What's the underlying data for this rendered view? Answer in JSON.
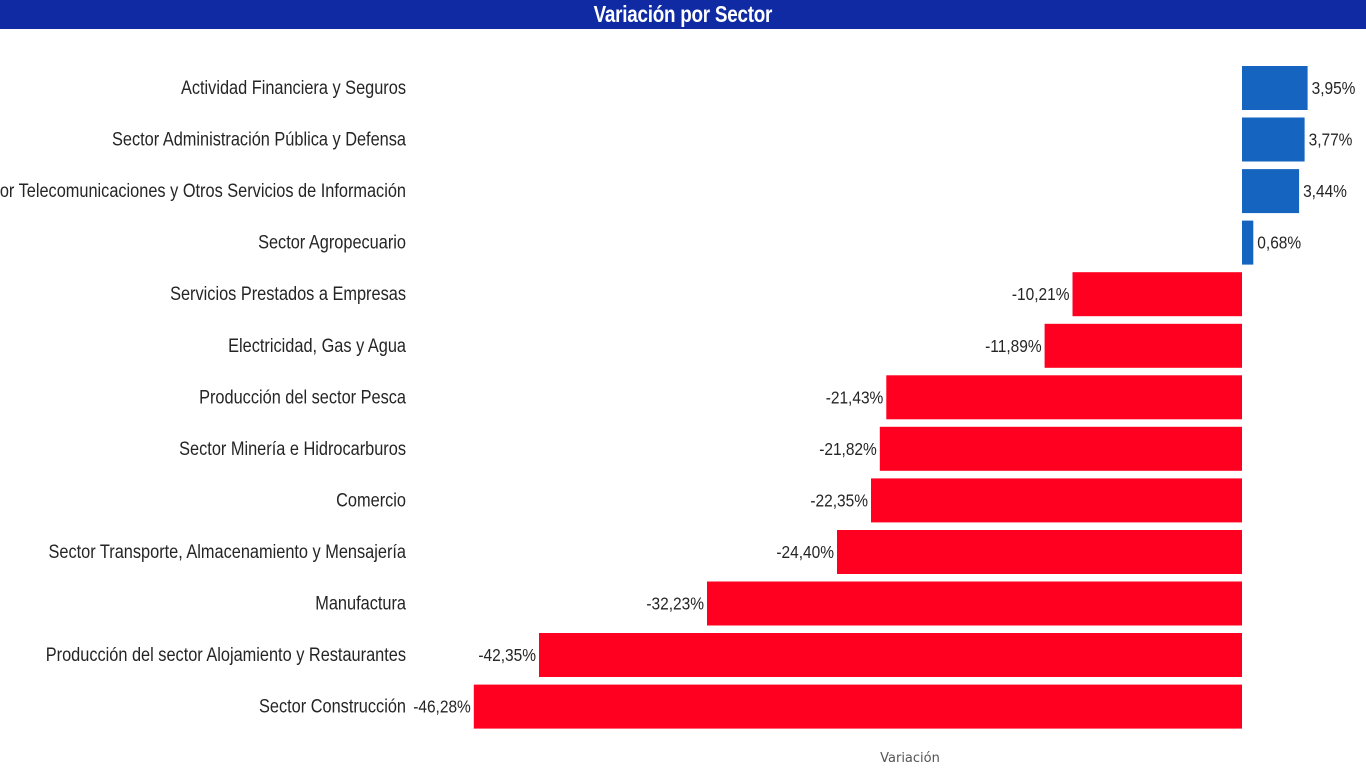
{
  "title": "Variación por Sector",
  "colors": {
    "positive": "#1565c0",
    "negative": "#ff0020",
    "header": "#0f2aa3"
  },
  "chart_data": {
    "type": "bar",
    "orientation": "horizontal",
    "title": "Variación por Sector",
    "xlabel": "Variación",
    "ylabel": "",
    "categories": [
      "Actividad Financiera y Seguros",
      "Sector Administración Pública y Defensa",
      "Sector Telecomunicaciones y Otros Servicios de Información",
      "Sector Agropecuario",
      "Servicios Prestados a Empresas",
      "Electricidad, Gas y Agua",
      "Producción del sector Pesca",
      "Sector Minería e Hidrocarburos",
      "Comercio",
      "Sector Transporte, Almacenamiento y Mensajería",
      "Manufactura",
      "Producción del sector Alojamiento y Restaurantes",
      "Sector Construcción"
    ],
    "values": [
      3.95,
      3.77,
      3.44,
      0.68,
      -10.21,
      -11.89,
      -21.43,
      -21.82,
      -22.35,
      -24.4,
      -32.23,
      -42.35,
      -46.28
    ],
    "labels": [
      "3,95%",
      "3,77%",
      "3,44%",
      "0,68%",
      "-10,21%",
      "-11,89%",
      "-21,43%",
      "-21,82%",
      "-22,35%",
      "-24,40%",
      "-32,23%",
      "-42,35%",
      "-46,28%"
    ],
    "xlim": [
      -46.28,
      3.95
    ],
    "grid": false,
    "legend": "none"
  }
}
